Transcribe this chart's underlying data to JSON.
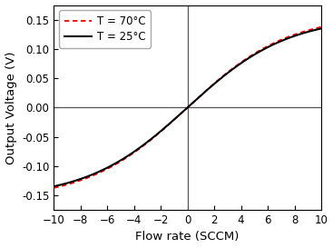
{
  "title": "",
  "xlabel": "Flow rate (SCCM)",
  "ylabel": "Output Voltage (V)",
  "xlim": [
    -10,
    10
  ],
  "ylim": [
    -0.175,
    0.175
  ],
  "xticks": [
    -10,
    -8,
    -6,
    -4,
    -2,
    0,
    2,
    4,
    6,
    8,
    10
  ],
  "yticks": [
    -0.15,
    -0.1,
    -0.05,
    0.0,
    0.05,
    0.1,
    0.15
  ],
  "line1_label": "T = 25°C",
  "line2_label": "T = 70°C",
  "line1_color": "#000000",
  "line2_color": "#ff0000",
  "axhline_y": 0.0,
  "axvline_x": 0.0,
  "axline_color": "#555555",
  "axline_lw": 0.9,
  "curve_scale": 0.145,
  "curve_shape": 10.0,
  "spread_scale": 0.006,
  "background_color": "#ffffff",
  "legend_fontsize": 8.5,
  "label_fontsize": 9.5,
  "tick_fontsize": 8.5
}
